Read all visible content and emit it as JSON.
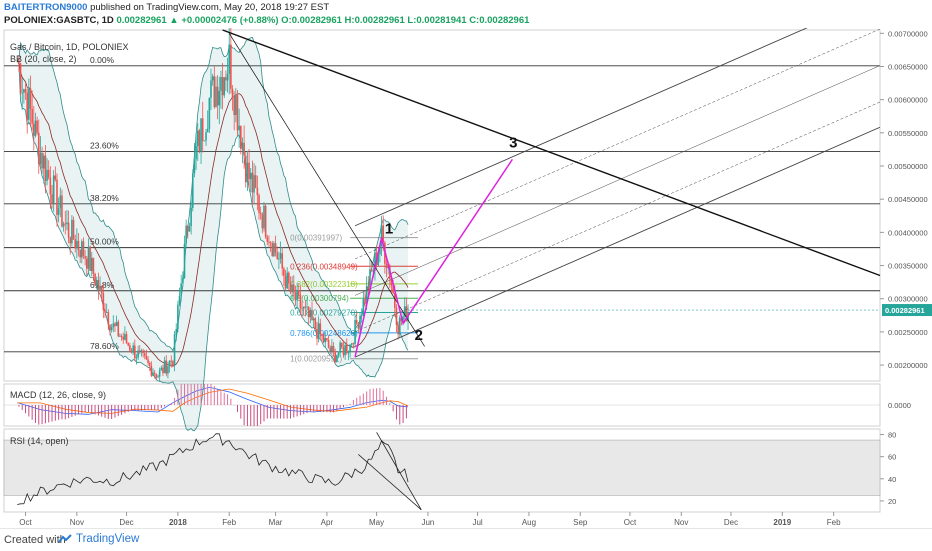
{
  "header": {
    "author": "BAITERTRON9000",
    "published_text": "published on TradingView.com, May 20, 2018 19:27 EST",
    "symbol": "POLONIEX:GASBTC, 1D",
    "last_price": "0.00282961",
    "change": "▲ +0.00002476 (+0.88%)",
    "ohlc": "O:0.00282961 H:0.00282961 L:0.00281941 C:0.00282961"
  },
  "indicators": {
    "main_title": "Gas / Bitcoin, 1D, POLONIEX",
    "bb_label": "BB (20, close, 2)",
    "macd_label": "MACD (12, 26, close, 9)",
    "rsi_label": "RSI (14, open)"
  },
  "colors": {
    "bull": "#26a69a",
    "bear": "#ef5350",
    "bb_band": "#2e8b8b",
    "pitchfork": "#444444",
    "wave_drawing": "#e020e0",
    "trend_line": "#111111",
    "price_tag": "#26a69a",
    "macd_line": "#2962ff",
    "signal_line": "#ff6d00",
    "rsi_line": "#222222"
  },
  "chart_data": {
    "type": "candlestick",
    "symbol": "POLONIEX:GASBTC",
    "interval": "1D",
    "ylim": [
      0.00176,
      0.00705
    ],
    "y_ticks": [
      "0.00700000",
      "0.00650000",
      "0.00600000",
      "0.00550000",
      "0.00500000",
      "0.00450000",
      "0.00400000",
      "0.00350000",
      "0.00300000",
      "0.00250000",
      "0.00200000"
    ],
    "x_ticks": [
      "Oct",
      "Nov",
      "Dec",
      "2018",
      "Feb",
      "Mar",
      "Apr",
      "May",
      "Jun",
      "Jul",
      "Aug",
      "Sep",
      "Oct",
      "Nov",
      "Dec",
      "2019",
      "Feb"
    ],
    "last_price_label": "0.00282961",
    "fib_levels": [
      {
        "label": "0.00%",
        "value": 0.00651
      },
      {
        "label": "23.60%",
        "value": 0.00522
      },
      {
        "label": "38.20%",
        "value": 0.00443
      },
      {
        "label": "50.00%",
        "value": 0.00377
      },
      {
        "label": "61.8%",
        "value": 0.00312
      },
      {
        "label": "78.60%",
        "value": 0.0022
      }
    ],
    "fib_retracement": [
      {
        "label": "0(0.00391997)",
        "value": 0.00392,
        "color": "#9e9e9e"
      },
      {
        "label": "0.236(0.00348949)",
        "value": 0.003489,
        "color": "#e53935"
      },
      {
        "label": "0.382(0.00322318)",
        "value": 0.003223,
        "color": "#9acd32"
      },
      {
        "label": "0.5(0.00300794)",
        "value": 0.003008,
        "color": "#4caf50"
      },
      {
        "label": "0.618(0.00279270)",
        "value": 0.002793,
        "color": "#26a69a"
      },
      {
        "label": "0.786(0.00248626)",
        "value": 0.002486,
        "color": "#2196f3"
      },
      {
        "label": "1(0.00209591)",
        "value": 0.002096,
        "color": "#9e9e9e"
      }
    ],
    "wave_labels": [
      "1",
      "2",
      "3"
    ],
    "series": [
      {
        "name": "price",
        "x": [
          "2017-09-26",
          "2017-10-10",
          "2017-10-25",
          "2017-11-08",
          "2017-11-22",
          "2017-12-06",
          "2017-12-20",
          "2017-12-29",
          "2018-01-05",
          "2018-01-12",
          "2018-01-20",
          "2018-02-01",
          "2018-02-12",
          "2018-02-25",
          "2018-03-10",
          "2018-03-24",
          "2018-04-05",
          "2018-04-15",
          "2018-04-25",
          "2018-05-04",
          "2018-05-09",
          "2018-05-14",
          "2018-05-20"
        ],
        "close": [
          0.0066,
          0.0052,
          0.0041,
          0.0036,
          0.0026,
          0.0022,
          0.00185,
          0.0021,
          0.0037,
          0.0052,
          0.006,
          0.0066,
          0.0049,
          0.004,
          0.0031,
          0.0026,
          0.00215,
          0.0023,
          0.0031,
          0.00392,
          0.0034,
          0.0026,
          0.00283
        ]
      }
    ],
    "macd_ylim": [
      -0.00045,
      0.00045
    ],
    "macd_ticks": [
      "0.0000"
    ],
    "macd_hist": [
      5e-05,
      -0.0001,
      -0.00018,
      -0.0002,
      -0.0001,
      -0.00012,
      -0.00015,
      5e-05,
      0.00018,
      0.0003,
      0.00038,
      0.00028,
      0.00012,
      -5e-05,
      -0.00012,
      -0.00015,
      -0.0001,
      -5e-05,
      5e-05,
      0.0001,
      8e-05,
      -2e-05,
      -4e-05
    ],
    "rsi_ylim": [
      10,
      85
    ],
    "rsi_ticks": [
      "80",
      "60",
      "40",
      "20"
    ],
    "rsi_band": [
      25,
      75
    ],
    "rsi_values": [
      20,
      28,
      36,
      40,
      38,
      44,
      52,
      60,
      66,
      72,
      78,
      74,
      62,
      52,
      46,
      40,
      36,
      44,
      52,
      70,
      66,
      48,
      42
    ]
  }
}
